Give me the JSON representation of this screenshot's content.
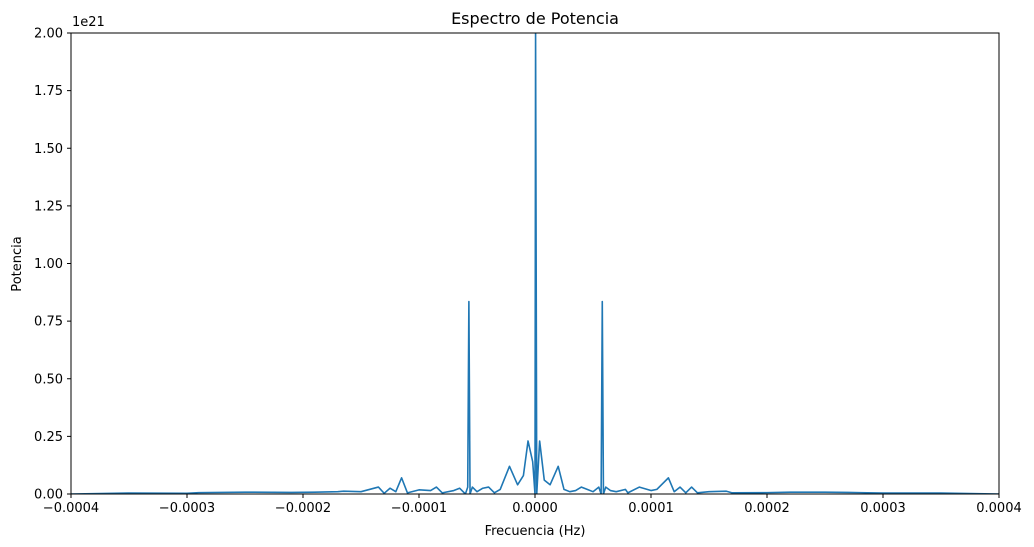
{
  "chart_data": {
    "type": "line",
    "title": "Espectro de Potencia",
    "xlabel": "Frecuencia (Hz)",
    "ylabel": "Potencia",
    "y_offset_label": "1e21",
    "xlim": [
      -0.0004,
      0.0004
    ],
    "ylim": [
      0,
      2.0
    ],
    "y_scale_multiplier": 1e+21,
    "x_tick_labels": [
      "−0.0004",
      "−0.0003",
      "−0.0002",
      "−0.0001",
      "0.0000",
      "0.0001",
      "0.0002",
      "0.0003",
      "0.0004"
    ],
    "x_ticks": [
      -0.0004,
      -0.0003,
      -0.0002,
      -0.0001,
      0.0,
      0.0001,
      0.0002,
      0.0003,
      0.0004
    ],
    "y_tick_labels": [
      "0.00",
      "0.25",
      "0.50",
      "0.75",
      "1.00",
      "1.25",
      "1.50",
      "1.75",
      "2.00"
    ],
    "y_ticks": [
      0,
      0.25,
      0.5,
      0.75,
      1.0,
      1.25,
      1.5,
      1.75,
      2.0
    ],
    "grid": false,
    "series": [
      {
        "color": "#1f77b4",
        "points": [
          [
            -0.0004,
            0.0
          ],
          [
            -0.00035,
            0.004
          ],
          [
            -0.0003,
            0.003
          ],
          [
            -0.00029,
            0.006
          ],
          [
            -0.00025,
            0.008
          ],
          [
            -0.00021,
            0.007
          ],
          [
            -0.00019,
            0.008
          ],
          [
            -0.00017,
            0.01
          ],
          [
            -0.000165,
            0.012
          ],
          [
            -0.00015,
            0.01
          ],
          [
            -0.000135,
            0.03
          ],
          [
            -0.00013,
            0.003
          ],
          [
            -0.000125,
            0.025
          ],
          [
            -0.00012,
            0.01
          ],
          [
            -0.000115,
            0.07
          ],
          [
            -0.00011,
            0.005
          ],
          [
            -0.0001,
            0.018
          ],
          [
            -9e-05,
            0.015
          ],
          [
            -8.5e-05,
            0.03
          ],
          [
            -8e-05,
            0.005
          ],
          [
            -7e-05,
            0.015
          ],
          [
            -6.5e-05,
            0.025
          ],
          [
            -6e-05,
            0.0
          ],
          [
            -5.8e-05,
            0.03
          ],
          [
            -5.7e-05,
            0.835
          ],
          [
            -5.6e-05,
            0.0
          ],
          [
            -5.4e-05,
            0.03
          ],
          [
            -5e-05,
            0.01
          ],
          [
            -4.5e-05,
            0.025
          ],
          [
            -4e-05,
            0.03
          ],
          [
            -3.5e-05,
            0.005
          ],
          [
            -3e-05,
            0.02
          ],
          [
            -2.2e-05,
            0.12
          ],
          [
            -1.5e-05,
            0.04
          ],
          [
            -1e-05,
            0.08
          ],
          [
            -6e-06,
            0.23
          ],
          [
            -2e-06,
            0.14
          ],
          [
            0.0,
            0.0
          ],
          [
            5e-07,
            2.0
          ],
          [
            1.5e-06,
            0.0
          ],
          [
            4e-06,
            0.23
          ],
          [
            8e-06,
            0.06
          ],
          [
            1.3e-05,
            0.04
          ],
          [
            2e-05,
            0.12
          ],
          [
            2.5e-05,
            0.02
          ],
          [
            3e-05,
            0.01
          ],
          [
            3.5e-05,
            0.015
          ],
          [
            4e-05,
            0.03
          ],
          [
            4.5e-05,
            0.02
          ],
          [
            5e-05,
            0.01
          ],
          [
            5.5e-05,
            0.03
          ],
          [
            5.7e-05,
            0.0
          ],
          [
            5.8e-05,
            0.835
          ],
          [
            5.9e-05,
            0.0
          ],
          [
            6.1e-05,
            0.03
          ],
          [
            6.5e-05,
            0.015
          ],
          [
            7e-05,
            0.01
          ],
          [
            7.8e-05,
            0.02
          ],
          [
            8e-05,
            0.005
          ],
          [
            9e-05,
            0.03
          ],
          [
            0.0001,
            0.015
          ],
          [
            0.000105,
            0.02
          ],
          [
            0.000115,
            0.07
          ],
          [
            0.00012,
            0.01
          ],
          [
            0.000125,
            0.03
          ],
          [
            0.00013,
            0.005
          ],
          [
            0.000135,
            0.03
          ],
          [
            0.00014,
            0.005
          ],
          [
            0.00015,
            0.01
          ],
          [
            0.000165,
            0.012
          ],
          [
            0.00017,
            0.005
          ],
          [
            0.0002,
            0.006
          ],
          [
            0.00022,
            0.008
          ],
          [
            0.00025,
            0.008
          ],
          [
            0.00027,
            0.007
          ],
          [
            0.00028,
            0.006
          ],
          [
            0.0003,
            0.004
          ],
          [
            0.00035,
            0.004
          ],
          [
            0.0004,
            0.0
          ]
        ]
      }
    ]
  }
}
